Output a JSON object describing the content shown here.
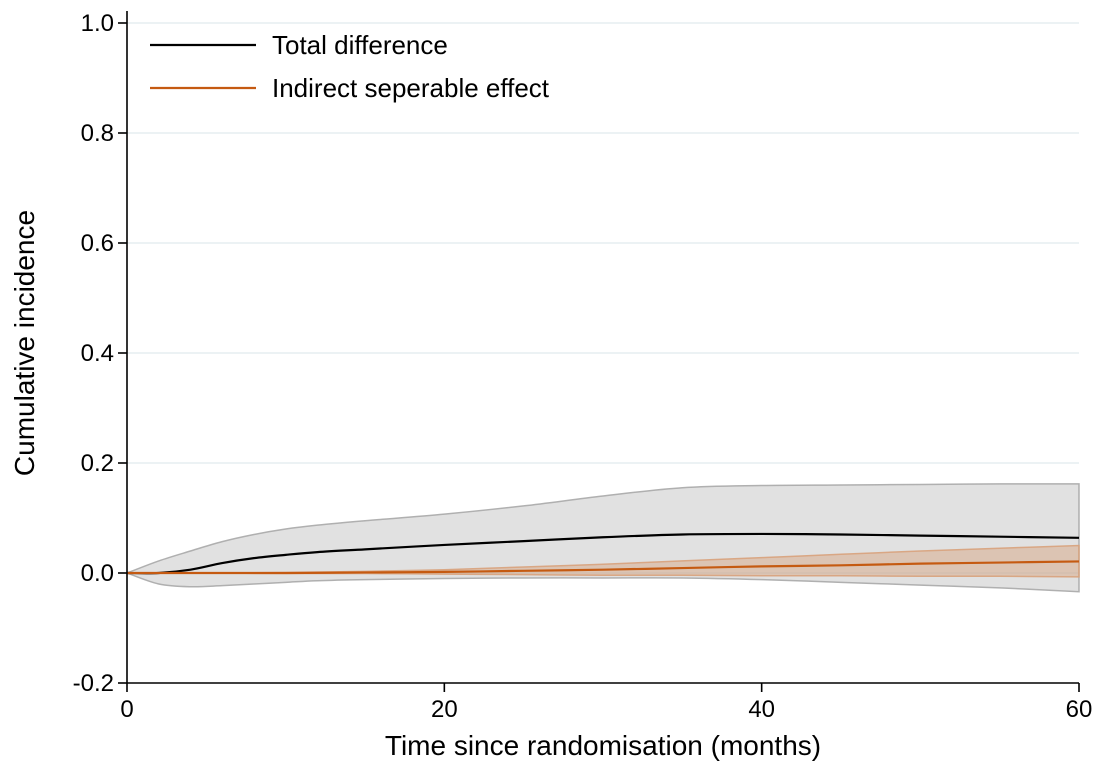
{
  "chart_data": {
    "type": "line",
    "xlabel": "Time since randomisation (months)",
    "ylabel": "Cumulative incidence",
    "xlim": [
      0,
      60
    ],
    "ylim": [
      -0.2,
      1.0
    ],
    "xticks": [
      0,
      20,
      40,
      60
    ],
    "xtick_labels": [
      "0",
      "20",
      "40",
      "60"
    ],
    "yticks": [
      -0.2,
      0.0,
      0.2,
      0.4,
      0.6,
      0.8,
      1.0
    ],
    "ytick_labels": [
      "-0.2",
      "0.0",
      "0.2",
      "0.4",
      "0.6",
      "0.8",
      "1.0"
    ],
    "grid": true,
    "legend_position": "top-left",
    "series": [
      {
        "name": "Total difference",
        "color": "#000000",
        "band_color": "#a8a8a8",
        "x": [
          0,
          2,
          4,
          6,
          8,
          10,
          12,
          15,
          20,
          25,
          30,
          35,
          40,
          45,
          50,
          55,
          60
        ],
        "y": [
          0,
          0,
          0.006,
          0.018,
          0.027,
          0.033,
          0.038,
          0.043,
          0.051,
          0.058,
          0.065,
          0.07,
          0.071,
          0.07,
          0.068,
          0.066,
          0.064
        ],
        "lower": [
          0,
          -0.02,
          -0.025,
          -0.023,
          -0.02,
          -0.017,
          -0.014,
          -0.012,
          -0.01,
          -0.009,
          -0.009,
          -0.009,
          -0.012,
          -0.017,
          -0.022,
          -0.027,
          -0.034
        ],
        "upper": [
          0,
          0.022,
          0.04,
          0.057,
          0.07,
          0.08,
          0.087,
          0.095,
          0.107,
          0.122,
          0.14,
          0.155,
          0.159,
          0.16,
          0.161,
          0.162,
          0.162
        ]
      },
      {
        "name": "Indirect seperable effect",
        "color": "#c55a11",
        "band_color": "#d8a27c",
        "x": [
          0,
          5,
          10,
          15,
          20,
          25,
          30,
          35,
          40,
          45,
          50,
          55,
          60
        ],
        "y": [
          0,
          0,
          0,
          0.001,
          0.002,
          0.004,
          0.006,
          0.009,
          0.012,
          0.014,
          0.017,
          0.019,
          0.021
        ],
        "lower": [
          0,
          0,
          -0.001,
          -0.001,
          -0.002,
          -0.003,
          -0.004,
          -0.004,
          -0.005,
          -0.005,
          -0.006,
          -0.006,
          -0.007
        ],
        "upper": [
          0,
          0,
          0.001,
          0.003,
          0.006,
          0.011,
          0.016,
          0.022,
          0.028,
          0.034,
          0.04,
          0.045,
          0.05
        ]
      }
    ]
  }
}
